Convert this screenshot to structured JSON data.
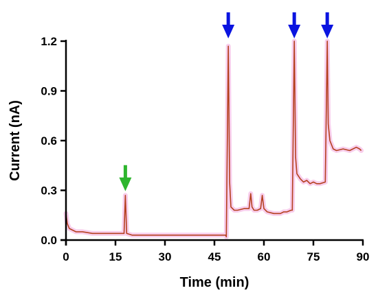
{
  "chart_data": {
    "type": "line",
    "title": "",
    "xlabel": "Time (min)",
    "ylabel": "Current (nA)",
    "xlim": [
      0,
      90
    ],
    "ylim": [
      0,
      1.2
    ],
    "x_ticks": [
      0,
      15,
      30,
      45,
      60,
      75,
      90
    ],
    "y_ticks": [
      0.0,
      0.3,
      0.6,
      0.9,
      1.2
    ],
    "x_tick_labels": [
      "0",
      "15",
      "30",
      "45",
      "60",
      "75",
      "90"
    ],
    "y_tick_labels": [
      "0.0",
      "0.3",
      "0.6",
      "0.9",
      "1.2"
    ],
    "grid": false,
    "legend": "none",
    "series": [
      {
        "color": "#b5401f",
        "band_color": "#f2a6dc",
        "points": [
          [
            0,
            0.16
          ],
          [
            0.4,
            0.1
          ],
          [
            1,
            0.07
          ],
          [
            2,
            0.06
          ],
          [
            3,
            0.05
          ],
          [
            5,
            0.05
          ],
          [
            8,
            0.04
          ],
          [
            12,
            0.04
          ],
          [
            17,
            0.04
          ],
          [
            17.6,
            0.04
          ],
          [
            18,
            0.27
          ],
          [
            18.4,
            0.04
          ],
          [
            20,
            0.03
          ],
          [
            25,
            0.03
          ],
          [
            30,
            0.03
          ],
          [
            35,
            0.03
          ],
          [
            40,
            0.03
          ],
          [
            45,
            0.03
          ],
          [
            48.4,
            0.03
          ],
          [
            48.6,
            0.02
          ],
          [
            49.2,
            1.17
          ],
          [
            49.6,
            0.35
          ],
          [
            50,
            0.2
          ],
          [
            51,
            0.18
          ],
          [
            52,
            0.18
          ],
          [
            54,
            0.19
          ],
          [
            55.5,
            0.19
          ],
          [
            56,
            0.28
          ],
          [
            56.4,
            0.2
          ],
          [
            57,
            0.18
          ],
          [
            58,
            0.18
          ],
          [
            59,
            0.19
          ],
          [
            59.5,
            0.27
          ],
          [
            60,
            0.19
          ],
          [
            61,
            0.17
          ],
          [
            63,
            0.16
          ],
          [
            65,
            0.16
          ],
          [
            66,
            0.17
          ],
          [
            67,
            0.17
          ],
          [
            68.2,
            0.18
          ],
          [
            68.6,
            0.18
          ],
          [
            69.2,
            1.2
          ],
          [
            69.6,
            0.5
          ],
          [
            70,
            0.4
          ],
          [
            71,
            0.37
          ],
          [
            72,
            0.35
          ],
          [
            73,
            0.36
          ],
          [
            74,
            0.34
          ],
          [
            75,
            0.35
          ],
          [
            76,
            0.34
          ],
          [
            77,
            0.34
          ],
          [
            78.6,
            0.35
          ],
          [
            79.2,
            1.2
          ],
          [
            79.5,
            0.7
          ],
          [
            80,
            0.6
          ],
          [
            81,
            0.55
          ],
          [
            82,
            0.54
          ],
          [
            84,
            0.55
          ],
          [
            86,
            0.54
          ],
          [
            88,
            0.56
          ],
          [
            89,
            0.55
          ],
          [
            89.5,
            0.54
          ]
        ]
      }
    ],
    "annotations": [
      {
        "type": "arrow",
        "color": "#2db52d",
        "x": 18
      },
      {
        "type": "arrow",
        "color": "#0a14e0",
        "x": 49.2
      },
      {
        "type": "arrow",
        "color": "#0a14e0",
        "x": 69.2
      },
      {
        "type": "arrow",
        "color": "#0a14e0",
        "x": 79.2
      }
    ]
  }
}
